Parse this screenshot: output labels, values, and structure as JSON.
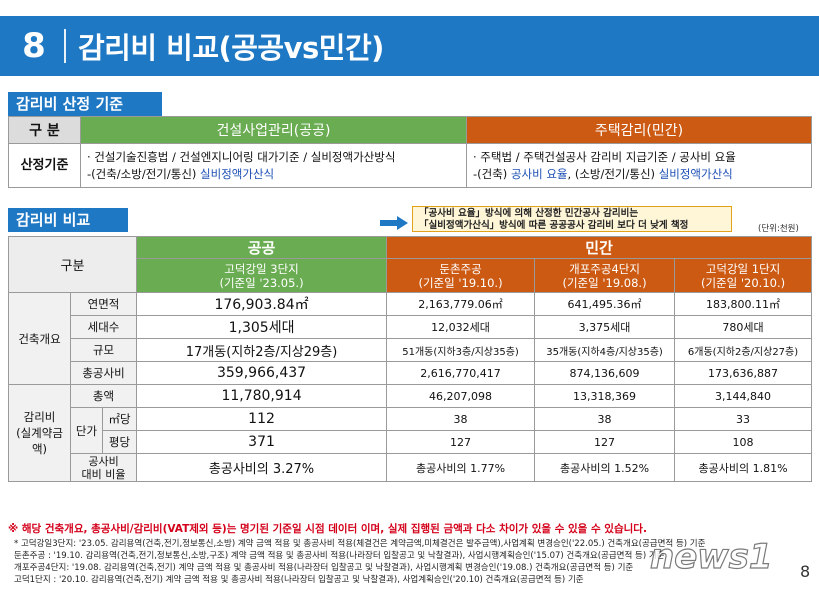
{
  "header": {
    "number": "8",
    "title": "감리비 비교(공공vs민간)"
  },
  "section1": {
    "tag": "감리비 산정 기준",
    "col_label": "구 분",
    "public_head": "건설사업관리(공공)",
    "private_head": "주택감리(민간)",
    "row_label": "산정기준",
    "public_line1": "· 건설기술진흥법 / 건설엔지니어링 대가기준 / 실비정액가산방식",
    "public_line2_a": "-(건축/소방/전기/통신) ",
    "public_line2_b": "실비정액가산식",
    "private_line1": "· 주택법 / 주택건설공사 감리비 지급기준 / 공사비 요율",
    "private_line2_a": "-(건축) ",
    "private_line2_b": "공사비 요율",
    "private_line2_c": ", (소방/전기/통신) ",
    "private_line2_d": "실비정액가산식"
  },
  "section2": {
    "tag": "감리비 비교",
    "note_line1": "「공사비 요율」방식에 의해 산정한 민간공사 감리비는",
    "note_line2": "「실비정액가산식」방식에 따른 공공공사 감리비 보다 더 낮게 책정",
    "unit": "(단위:천원)",
    "gubun": "구분",
    "public_head": "공공",
    "private_head": "민간",
    "sites": [
      {
        "name": "고덕강일 3단지",
        "base": "(기준일 '23.05.)"
      },
      {
        "name": "둔촌주공",
        "base": "(기준일 '19.10.)"
      },
      {
        "name": "개포주공4단지",
        "base": "(기준일 '19.08.)"
      },
      {
        "name": "고덕강일 1단지",
        "base": "(기준일 '20.10.)"
      }
    ],
    "cat_building": "건축개요",
    "cat_fee_1": "감리비",
    "cat_fee_2": "(실계약금액)",
    "danga": "단가",
    "rows": {
      "area": {
        "label": "연면적",
        "values": [
          "176,903.84㎡",
          "2,163,779.06㎡",
          "641,495.36㎡",
          "183,800.11㎡"
        ]
      },
      "units": {
        "label": "세대수",
        "values": [
          "1,305세대",
          "12,032세대",
          "3,375세대",
          "780세대"
        ]
      },
      "scale": {
        "label": "규모",
        "values": [
          "17개동(지하2층/지상29층)",
          "51개동(지하3층/지상35층)",
          "35개동(지하4층/지상35층)",
          "6개동(지하2층/지상27층)"
        ]
      },
      "cost": {
        "label": "총공사비",
        "values": [
          "359,966,437",
          "2,616,770,417",
          "874,136,609",
          "173,636,887"
        ]
      },
      "total": {
        "label": "총액",
        "values": [
          "11,780,914",
          "46,207,098",
          "13,318,369",
          "3,144,840"
        ]
      },
      "per_m2": {
        "label": "㎡당",
        "values": [
          "112",
          "38",
          "38",
          "33"
        ]
      },
      "per_py": {
        "label": "평당",
        "values": [
          "371",
          "127",
          "127",
          "108"
        ]
      },
      "ratio": {
        "label_1": "공사비",
        "label_2": "대비 비율",
        "values": [
          "총공사비의 3.27%",
          "총공사비의 1.77%",
          "총공사비의 1.52%",
          "총공사비의 1.81%"
        ]
      }
    }
  },
  "footnotes": {
    "warning": "※ 해당 건축개요, 총공사비/감리비(VAT제외 등)는 명기된 기준일 시점 데이터 이며, 실제 집행된 금액과 다소 차이가 있을 수 있을 수 있습니다.",
    "lines": [
      "* 고덕강일3단지: '23.05. 감리용역(건축,전기,정보통신,소방) 계약 금액 적용 및 총공사비 적용(체결건은 계약금액,미체결건은 발주금액),사업계획 변경승인('22.05.) 건축개요(공급면적 등) 기준",
      "둔촌주공 : '19.10. 감리용역(건축,전기,정보통신,소방,구조) 계약 금액 적용 및 총공사비 적용(나라장터 입찰공고 및 낙찰결과), 사업시행계획승인('15.07) 건축개요(공급면적 등) 기준",
      "개포주공4단지: '19.08. 감리용역(건축,전기) 계약 금액 적용 및 총공사비 적용(나라장터 입찰공고 및 낙찰결과), 사업시행계획 변경승인('19.08.) 건축개요(공급면적 등) 기준",
      "고덕1단지 : '20.10. 감리용역(건축,전기) 계약 금액 적용 및 총공사비 적용(나라장터 입찰공고 및 낙찰결과), 사업계획승인('20.10) 건축개요(공급면적 등) 기준"
    ]
  },
  "watermark": {
    "text": "news1"
  },
  "page_number": "8",
  "colors": {
    "header_blue": "#1f78c4",
    "public_green": "#6aac52",
    "private_orange": "#cc5a13",
    "highlight_blue": "#1d4fb5",
    "warning_red": "#d4001a"
  }
}
